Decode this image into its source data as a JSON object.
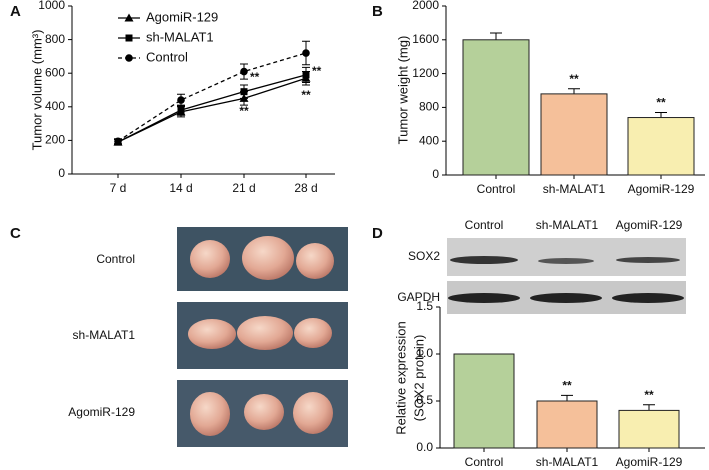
{
  "panel_labels": [
    "A",
    "B",
    "C",
    "D"
  ],
  "chart_data": [
    {
      "type": "line",
      "ylabel": "Tumor volume (mm³)",
      "categories": [
        "7 d",
        "14 d",
        "21 d",
        "28 d"
      ],
      "ylim": [
        0,
        1000
      ],
      "yticks": [
        0,
        200,
        400,
        600,
        800,
        1000
      ],
      "legend": "upper left",
      "series": [
        {
          "name": "AgomiR-129",
          "color": "#000000",
          "marker": "triangle",
          "dashed": false,
          "values": [
            190,
            370,
            450,
            570
          ],
          "errors": [
            15,
            30,
            40,
            40
          ]
        },
        {
          "name": "sh-MALAT1",
          "color": "#000000",
          "marker": "square",
          "dashed": false,
          "values": [
            190,
            380,
            490,
            590
          ],
          "errors": [
            15,
            30,
            40,
            45
          ]
        },
        {
          "name": "Control",
          "color": "#000000",
          "marker": "circle",
          "dashed": true,
          "values": [
            195,
            440,
            610,
            720
          ],
          "errors": [
            15,
            35,
            45,
            70
          ]
        }
      ],
      "annotations": [
        {
          "text": "**",
          "x": "21 d",
          "y": 571,
          "position": "right"
        },
        {
          "text": "**",
          "x": "21 d",
          "y": 369,
          "position": "below"
        },
        {
          "text": "**",
          "x": "28 d",
          "y": 607,
          "position": "right"
        },
        {
          "text": "**",
          "x": "28 d",
          "y": 464,
          "position": "below"
        }
      ]
    },
    {
      "type": "bar",
      "ylabel": "Tumor weight (mg)",
      "categories": [
        "Control",
        "sh-MALAT1",
        "AgomiR-129"
      ],
      "values": [
        1600,
        960,
        680
      ],
      "errors": [
        80,
        60,
        60
      ],
      "colors": [
        "#b5d09a",
        "#f5c09a",
        "#f8eeb0"
      ],
      "significance": [
        null,
        "**",
        "**"
      ],
      "ylim": [
        0,
        2000
      ],
      "yticks": [
        0,
        400,
        800,
        1200,
        1600,
        2000
      ]
    },
    {
      "type": "bar",
      "ylabel": [
        "Relative expression",
        "(SOX2 protein)"
      ],
      "categories": [
        "Control",
        "sh-MALAT1",
        "AgomiR-129"
      ],
      "values": [
        1.0,
        0.5,
        0.4
      ],
      "errors": [
        0,
        0.06,
        0.06
      ],
      "colors": [
        "#b5d09a",
        "#f5c09a",
        "#f8eeb0"
      ],
      "significance": [
        null,
        "**",
        "**"
      ],
      "ylim": [
        0,
        1.5
      ],
      "yticks": [
        {
          "value": 0,
          "label": "0.0"
        },
        {
          "value": 0.5,
          "label": "0.5"
        },
        {
          "value": 1,
          "label": "1.0"
        },
        {
          "value": 1.5,
          "label": "1.5"
        }
      ]
    }
  ],
  "photos": {
    "rows": [
      "Control",
      "sh-MALAT1",
      "AgomiR-129"
    ]
  },
  "blot": {
    "lanes": [
      "Control",
      "sh-MALAT1",
      "AgomiR-129"
    ],
    "proteins": [
      "SOX2",
      "GAPDH"
    ]
  }
}
